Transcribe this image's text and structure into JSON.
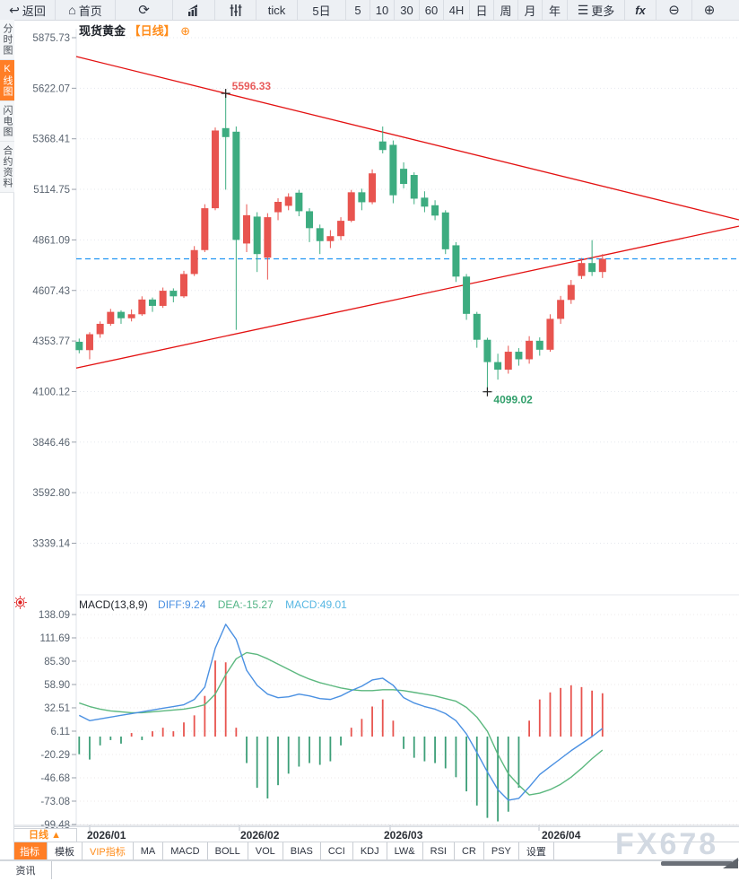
{
  "topbar": {
    "items": [
      {
        "label": "返回",
        "icon": "back-arrow-icon"
      },
      {
        "label": "首页",
        "icon": "home-icon"
      },
      {
        "label": "",
        "icon": "refresh-icon"
      },
      {
        "label": "",
        "icon": "bar-chart-icon"
      },
      {
        "label": "",
        "icon": "candles-icon"
      },
      {
        "label": "tick"
      },
      {
        "label": "5日"
      },
      {
        "label": "5"
      },
      {
        "label": "10"
      },
      {
        "label": "30"
      },
      {
        "label": "60"
      },
      {
        "label": "4H"
      },
      {
        "label": "日"
      },
      {
        "label": "周"
      },
      {
        "label": "月"
      },
      {
        "label": "年"
      },
      {
        "label": "更多",
        "icon": "menu-icon"
      },
      {
        "label": "fx"
      },
      {
        "label": "",
        "icon": "zoom-out-icon"
      },
      {
        "label": "",
        "icon": "zoom-in-icon"
      }
    ],
    "icons": {
      "back": "↩",
      "home": "⌂",
      "refresh": "⟳",
      "menu": "☰",
      "zoom_out": "⊖",
      "zoom_in": "⊕"
    }
  },
  "sidebar": {
    "tabs": [
      {
        "label": "分时图",
        "active": false
      },
      {
        "label": "K线图",
        "active": true
      },
      {
        "label": "闪电图",
        "active": false
      },
      {
        "label": "合约资料",
        "active": false
      }
    ]
  },
  "title": {
    "symbol": "现货黄金",
    "period_tag": "【日线】",
    "add_icon": "⊕"
  },
  "macd_header": {
    "name": "MACD(13,8,9)",
    "diff_label": "DIFF:9.24",
    "dea_label": "DEA:-15.27",
    "macd_label": "MACD:49.01"
  },
  "bottom": {
    "period_selector": "日线 ▲",
    "months": [
      "2026/01",
      "2026/02",
      "2026/03",
      "2026/04"
    ],
    "indicators": [
      {
        "label": "指标",
        "active": true
      },
      {
        "label": "模板"
      },
      {
        "label": "VIP指标",
        "vip": true
      },
      {
        "label": "MA"
      },
      {
        "label": "MACD"
      },
      {
        "label": "BOLL"
      },
      {
        "label": "VOL"
      },
      {
        "label": "BIAS"
      },
      {
        "label": "CCI"
      },
      {
        "label": "KDJ"
      },
      {
        "label": "LW&"
      },
      {
        "label": "RSI"
      },
      {
        "label": "CR"
      },
      {
        "label": "PSY"
      },
      {
        "label": "设置"
      }
    ],
    "news_tab": "资讯"
  },
  "watermark": "FX678",
  "colors": {
    "up": "#e8544f",
    "down": "#3dac80",
    "trendline": "#e31212",
    "last_price": "#2196f3",
    "diff_line": "#4a90e2",
    "dea_line": "#5cb87f",
    "hist_up": "#e8544f",
    "hist_down": "#3d9f78",
    "accent_orange": "#ff7e26",
    "axis_text": "#5a6470",
    "high_label": "#e85c5c",
    "low_label": "#33a06c"
  },
  "chart_data": [
    {
      "type": "candlestick",
      "title": "现货黄金 日线",
      "y_axis_labels": [
        5875.73,
        5622.07,
        5368.41,
        5114.75,
        4861.09,
        4607.43,
        4353.77,
        4100.12,
        3846.46,
        3592.8,
        3339.14
      ],
      "x_axis_labels": [
        "2026/01",
        "2026/02",
        "2026/03",
        "2026/04"
      ],
      "ylim": [
        3339.14,
        5875.73
      ],
      "grid": true,
      "candles": [
        [
          4350,
          4366,
          4292,
          4308
        ],
        [
          4308,
          4398,
          4262,
          4388
        ],
        [
          4388,
          4452,
          4370,
          4440
        ],
        [
          4440,
          4515,
          4430,
          4500
        ],
        [
          4500,
          4508,
          4440,
          4468
        ],
        [
          4468,
          4512,
          4452,
          4488
        ],
        [
          4488,
          4578,
          4480,
          4562
        ],
        [
          4562,
          4572,
          4500,
          4530
        ],
        [
          4530,
          4622,
          4520,
          4606
        ],
        [
          4606,
          4618,
          4548,
          4578
        ],
        [
          4578,
          4706,
          4570,
          4690
        ],
        [
          4690,
          4830,
          4680,
          4810
        ],
        [
          4810,
          5040,
          4800,
          5020
        ],
        [
          5020,
          5425,
          5010,
          5410
        ],
        [
          5422,
          5596.33,
          5113,
          5377
        ],
        [
          5404,
          5430,
          4410,
          4861
        ],
        [
          4843,
          5040,
          4800,
          4985
        ],
        [
          4978,
          5000,
          4700,
          4790
        ],
        [
          4772,
          4995,
          4662,
          4975
        ],
        [
          5000,
          5070,
          4960,
          5052
        ],
        [
          5032,
          5095,
          5010,
          5078
        ],
        [
          5098,
          5112,
          4980,
          5005
        ],
        [
          5005,
          5020,
          4850,
          4920
        ],
        [
          4920,
          4938,
          4790,
          4855
        ],
        [
          4855,
          4910,
          4820,
          4880
        ],
        [
          4880,
          4975,
          4860,
          4957
        ],
        [
          4957,
          5112,
          4950,
          5100
        ],
        [
          5100,
          5118,
          5010,
          5050
        ],
        [
          5050,
          5215,
          5040,
          5195
        ],
        [
          5355,
          5430,
          5295,
          5312
        ],
        [
          5338,
          5360,
          5045,
          5085
        ],
        [
          5218,
          5250,
          5120,
          5142
        ],
        [
          5187,
          5200,
          5040,
          5068
        ],
        [
          5073,
          5105,
          5000,
          5028
        ],
        [
          5035,
          5060,
          4960,
          4983
        ],
        [
          4999,
          5010,
          4790,
          4814
        ],
        [
          4834,
          4850,
          4650,
          4677
        ],
        [
          4677,
          4690,
          4460,
          4490
        ],
        [
          4490,
          4500,
          4320,
          4360
        ],
        [
          4360,
          4370,
          4099.02,
          4248
        ],
        [
          4248,
          4290,
          4160,
          4210
        ],
        [
          4210,
          4330,
          4190,
          4300
        ],
        [
          4300,
          4318,
          4230,
          4262
        ],
        [
          4262,
          4378,
          4240,
          4355
        ],
        [
          4355,
          4372,
          4280,
          4310
        ],
        [
          4310,
          4488,
          4300,
          4465
        ],
        [
          4465,
          4580,
          4440,
          4560
        ],
        [
          4560,
          4660,
          4540,
          4635
        ],
        [
          4680,
          4770,
          4665,
          4745
        ],
        [
          4745,
          4860,
          4680,
          4700
        ],
        [
          4700,
          4790,
          4670,
          4766
        ]
      ],
      "high_annotation": {
        "value": 5596.33,
        "label": "5596.33",
        "candle_index": 14
      },
      "low_annotation": {
        "value": 4099.02,
        "label": "4099.02",
        "candle_index": 39
      },
      "last_price_line": 4766,
      "trendlines": [
        {
          "name": "descending-resistance",
          "left_value": 5781,
          "right_value": 4962
        },
        {
          "name": "ascending-support",
          "left_value": 4218,
          "right_value": 4930
        }
      ]
    },
    {
      "type": "macd",
      "params": "(13,8,9)",
      "y_axis_labels": [
        138.09,
        111.69,
        85.3,
        58.9,
        32.51,
        6.11,
        -20.29,
        -46.68,
        -73.08,
        -99.48
      ],
      "current": {
        "diff": 9.24,
        "dea": -15.27,
        "macd": 49.01
      },
      "diff": [
        24,
        18,
        20,
        22,
        24,
        26,
        28,
        30,
        32,
        34,
        36,
        42,
        56,
        100,
        127,
        110,
        75,
        58,
        48,
        44,
        45,
        48,
        46,
        43,
        42,
        46,
        52,
        57,
        64,
        66,
        58,
        44,
        38,
        34,
        31,
        26,
        18,
        3,
        -18,
        -40,
        -60,
        -72,
        -70,
        -57,
        -43,
        -34,
        -25,
        -16,
        -8,
        0,
        9.24
      ],
      "dea": [
        38,
        34,
        31,
        29,
        28,
        27,
        27,
        28,
        29,
        30,
        31,
        33,
        36,
        48,
        70,
        88,
        95,
        93,
        88,
        82,
        76,
        70,
        65,
        61,
        58,
        55,
        53,
        52,
        52,
        53,
        53,
        52,
        50,
        48,
        46,
        43,
        40,
        33,
        22,
        6,
        -20,
        -42,
        -55,
        -66,
        -64,
        -60,
        -54,
        -46,
        -36,
        -25,
        -15.27
      ],
      "histogram": [
        -20,
        -26,
        -10,
        -4,
        -8,
        4,
        -4,
        6,
        10,
        6,
        16,
        24,
        46,
        86,
        84,
        10,
        -30,
        -58,
        -70,
        -55,
        -42,
        -34,
        -30,
        -32,
        -28,
        -10,
        10,
        20,
        34,
        42,
        18,
        -14,
        -24,
        -28,
        -30,
        -36,
        -46,
        -62,
        -78,
        -92,
        -96,
        -85,
        -58,
        18,
        42,
        50,
        55,
        58,
        56,
        52,
        49.01
      ]
    }
  ]
}
